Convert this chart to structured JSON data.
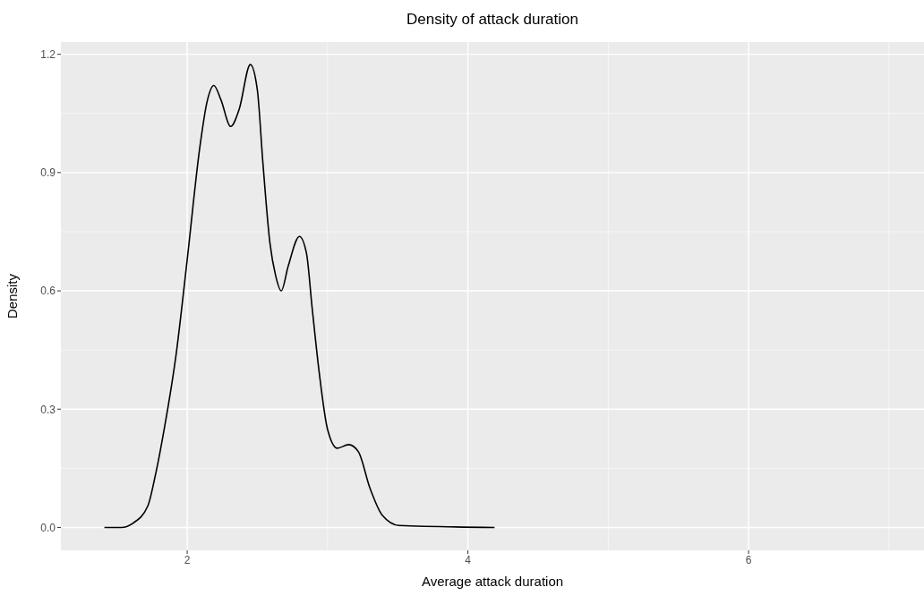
{
  "chart_data": {
    "type": "line",
    "title": "Density of attack duration",
    "xlabel": "Average attack duration",
    "ylabel": "Density",
    "x": [
      1.41,
      1.53,
      1.61,
      1.72,
      1.77,
      1.84,
      1.92,
      2.0,
      2.09,
      2.14,
      2.19,
      2.24,
      2.31,
      2.37,
      2.45,
      2.5,
      2.54,
      2.59,
      2.63,
      2.67,
      2.72,
      2.8,
      2.85,
      2.89,
      2.94,
      3.0,
      3.07,
      3.15,
      3.22,
      3.3,
      3.39,
      3.51,
      4.19
    ],
    "series": [
      {
        "color": "#000000",
        "values": [
          0.0,
          0.0,
          0.01,
          0.055,
          0.127,
          0.257,
          0.436,
          0.679,
          0.964,
          1.077,
          1.121,
          1.085,
          1.017,
          1.06,
          1.174,
          1.109,
          0.922,
          0.72,
          0.639,
          0.6,
          0.663,
          0.738,
          0.695,
          0.558,
          0.395,
          0.249,
          0.201,
          0.21,
          0.192,
          0.102,
          0.031,
          0.005,
          0.0
        ]
      }
    ],
    "xlim": [
      1.1,
      7.25
    ],
    "xticks": [
      2,
      4,
      6
    ],
    "ylim": [
      -0.058,
      1.231
    ],
    "yticks": [
      {
        "value": 0,
        "label": "0.0"
      },
      0.3,
      0.6,
      0.9,
      1.2
    ],
    "grid": true,
    "marker": "none",
    "line_style": "solid"
  }
}
